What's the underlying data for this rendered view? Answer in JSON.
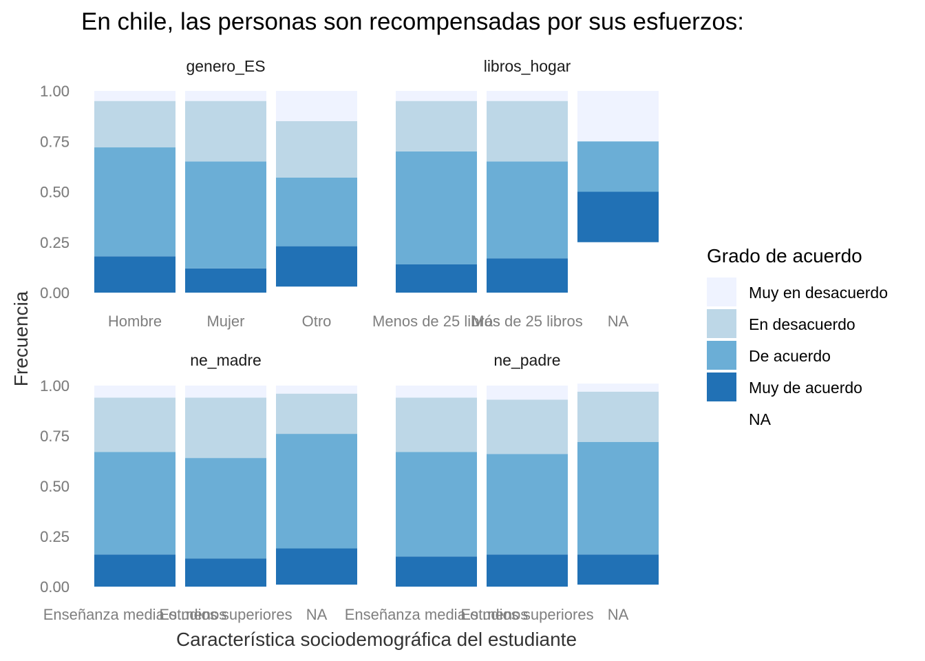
{
  "title": "En chile, las personas son recompensadas por sus esfuerzos:",
  "chart_data": {
    "type": "bar",
    "stacked": true,
    "title": "En chile, las personas son recompensadas por sus esfuerzos:",
    "xlabel": "Característica sociodemográfica del estudiante",
    "ylabel": "Frecuencia",
    "ylim": [
      0,
      1
    ],
    "y_ticks": [
      "0.00",
      "0.25",
      "0.50",
      "0.75",
      "1.00"
    ],
    "grid": false,
    "legend_position": "right",
    "legend": {
      "title": "Grado de acuerdo",
      "entries": [
        {
          "label": "Muy en desacuerdo",
          "color": "#eff3ff"
        },
        {
          "label": "En desacuerdo",
          "color": "#bdd7e7"
        },
        {
          "label": "De acuerdo",
          "color": "#6baed6"
        },
        {
          "label": "Muy de acuerdo",
          "color": "#2171b5"
        },
        {
          "label": "NA",
          "color": "#ffffff"
        }
      ]
    },
    "facets": [
      {
        "name": "genero_ES",
        "categories": [
          "Hombre",
          "Mujer",
          "Otro"
        ],
        "series": [
          {
            "name": "NA",
            "values": [
              0.0,
              0.0,
              0.03
            ]
          },
          {
            "name": "Muy de acuerdo",
            "values": [
              0.18,
              0.12,
              0.2
            ]
          },
          {
            "name": "De acuerdo",
            "values": [
              0.54,
              0.53,
              0.34
            ]
          },
          {
            "name": "En desacuerdo",
            "values": [
              0.23,
              0.3,
              0.28
            ]
          },
          {
            "name": "Muy en desacuerdo",
            "values": [
              0.05,
              0.05,
              0.15
            ]
          }
        ]
      },
      {
        "name": "libros_hogar",
        "categories": [
          "Menos de 25 libros",
          "Más de 25 libros",
          "NA"
        ],
        "series": [
          {
            "name": "NA",
            "values": [
              0.0,
              0.0,
              0.25
            ]
          },
          {
            "name": "Muy de acuerdo",
            "values": [
              0.14,
              0.17,
              0.25
            ]
          },
          {
            "name": "De acuerdo",
            "values": [
              0.56,
              0.48,
              0.25
            ]
          },
          {
            "name": "En desacuerdo",
            "values": [
              0.25,
              0.3,
              0.0
            ]
          },
          {
            "name": "Muy en desacuerdo",
            "values": [
              0.05,
              0.05,
              0.25
            ]
          }
        ]
      },
      {
        "name": "ne_madre",
        "categories": [
          "Enseñanza media o menos",
          "Estudios superiores",
          "NA"
        ],
        "series": [
          {
            "name": "NA",
            "values": [
              0.0,
              0.0,
              0.01
            ]
          },
          {
            "name": "Muy de acuerdo",
            "values": [
              0.16,
              0.14,
              0.18
            ]
          },
          {
            "name": "De acuerdo",
            "values": [
              0.51,
              0.5,
              0.57
            ]
          },
          {
            "name": "En desacuerdo",
            "values": [
              0.27,
              0.3,
              0.2
            ]
          },
          {
            "name": "Muy en desacuerdo",
            "values": [
              0.06,
              0.06,
              0.04
            ]
          }
        ]
      },
      {
        "name": "ne_padre",
        "categories": [
          "Enseñanza media o menos",
          "Estudios superiores",
          "NA"
        ],
        "series": [
          {
            "name": "NA",
            "values": [
              0.0,
              0.0,
              0.01
            ]
          },
          {
            "name": "Muy de acuerdo",
            "values": [
              0.15,
              0.16,
              0.15
            ]
          },
          {
            "name": "De acuerdo",
            "values": [
              0.52,
              0.5,
              0.56
            ]
          },
          {
            "name": "En desacuerdo",
            "values": [
              0.27,
              0.27,
              0.25
            ]
          },
          {
            "name": "Muy en desacuerdo",
            "values": [
              0.06,
              0.07,
              0.04
            ]
          }
        ]
      }
    ]
  }
}
